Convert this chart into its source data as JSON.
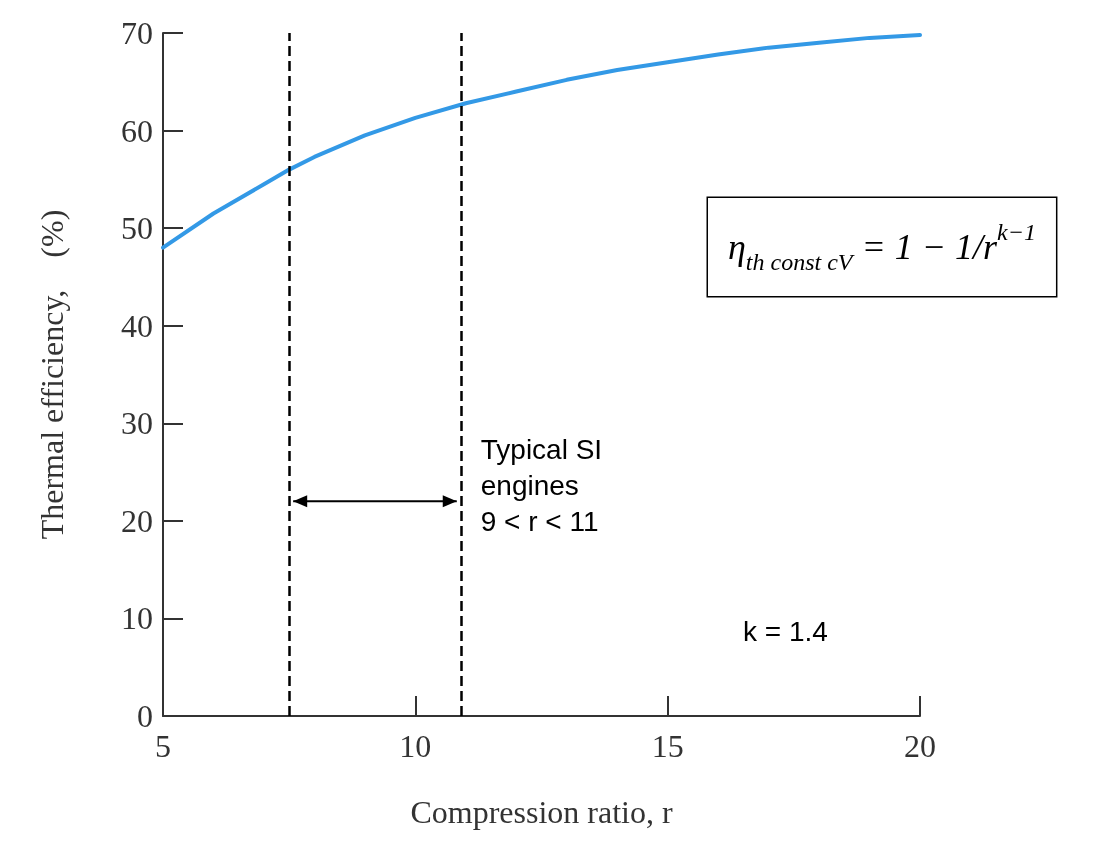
{
  "chart_data": {
    "type": "line",
    "xlabel": "Compression ratio, r",
    "ylabel": "Thermal efficiency,    (%)",
    "x": [
      5,
      6,
      7,
      7.5,
      8,
      9,
      10,
      11,
      12,
      13,
      14,
      15,
      16,
      17,
      18,
      19,
      20
    ],
    "series": [
      {
        "color": "#3399e6",
        "values": [
          48,
          51.5,
          54.5,
          56,
          57.3,
          59.5,
          61.3,
          62.8,
          64,
          65.2,
          66.2,
          67,
          67.8,
          68.5,
          69,
          69.5,
          69.8
        ]
      }
    ],
    "xlim": [
      5,
      20
    ],
    "ylim": [
      0,
      70
    ],
    "xticks": [
      5,
      10,
      15,
      20
    ],
    "yticks": [
      0,
      10,
      20,
      30,
      40,
      50,
      60,
      70
    ],
    "ref_lines": [
      {
        "axis": "x",
        "value": 7.5,
        "color": "#000000",
        "line_style": "dashed"
      },
      {
        "axis": "x",
        "value": 10.9,
        "color": "#000000",
        "line_style": "dashed"
      }
    ],
    "annotations": [
      "η$_{th const cV}$ = 1 − 1/r$^{k−1}$",
      {
        "text": "Typical SI\nengines\n9 < r < 11",
        "x": 10.9,
        "y": 22
      },
      "k = 1.4"
    ],
    "grid": false,
    "marker": "none",
    "line_style": "solid"
  }
}
